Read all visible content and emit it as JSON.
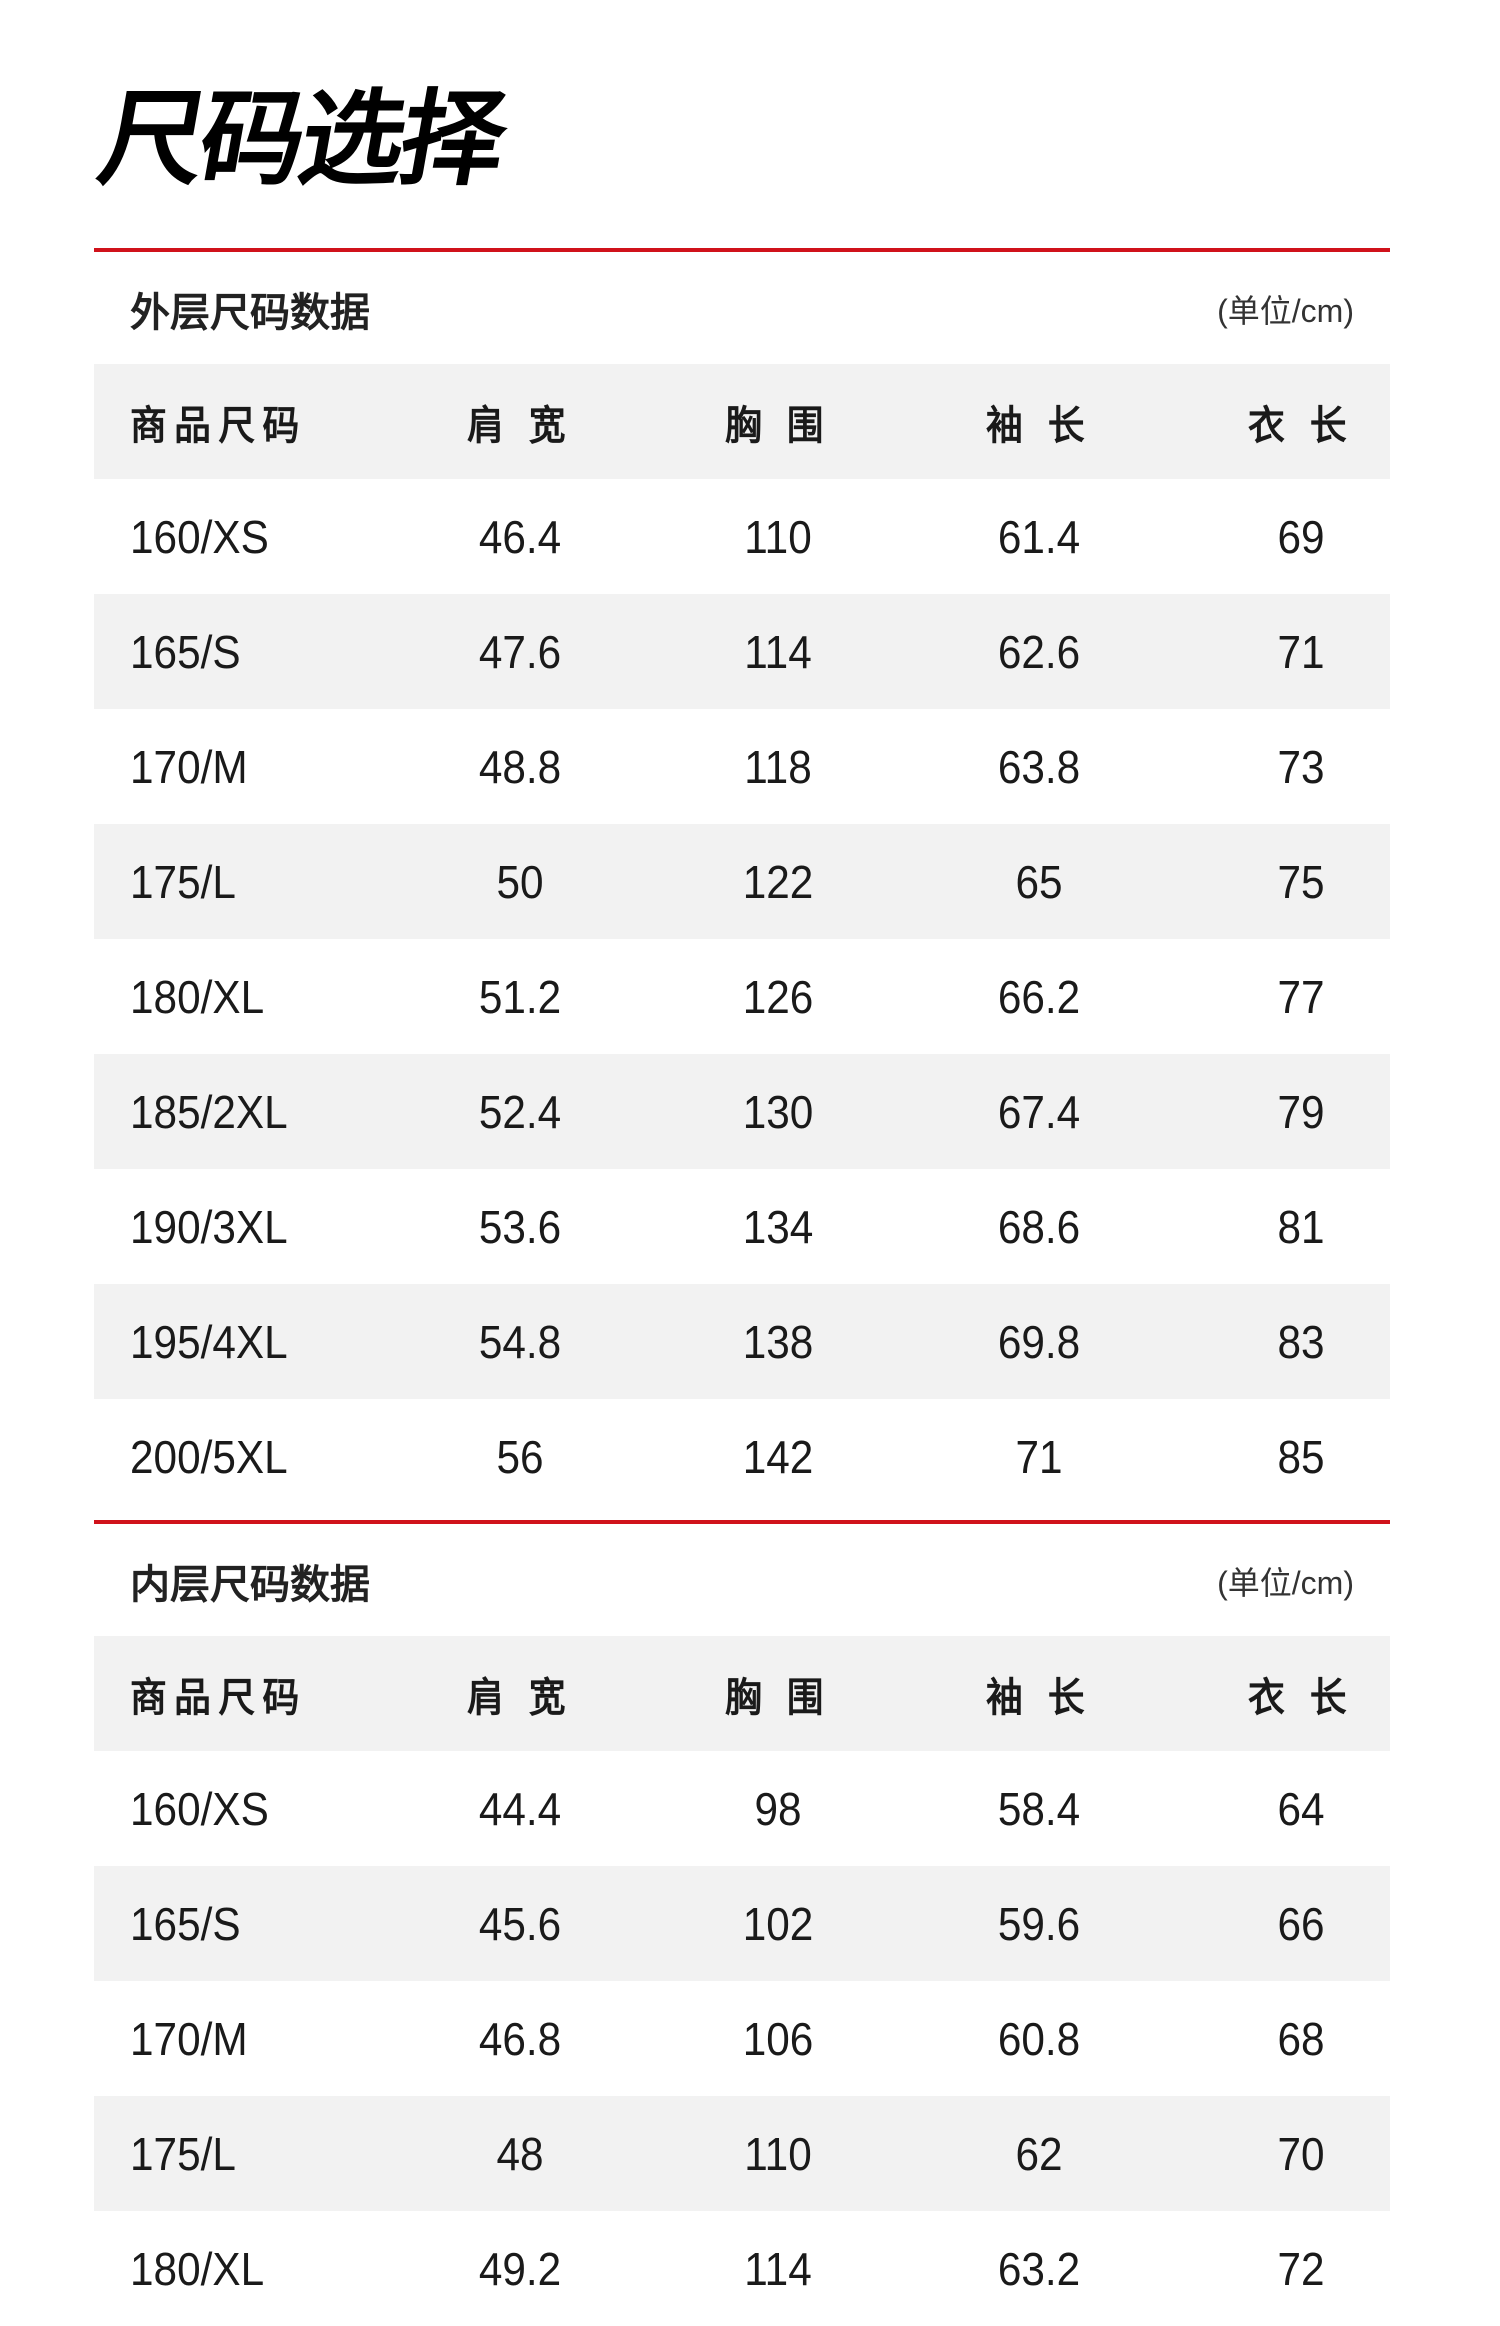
{
  "page_title": "尺码选择",
  "columns": [
    "商品尺码",
    "肩 宽",
    "胸 围",
    "袖 长",
    "衣 长"
  ],
  "colors": {
    "accent_line": "#d0121b",
    "stripe": "#f2f2f2"
  },
  "tables": [
    {
      "title": "外层尺码数据",
      "unit": "(单位/cm)",
      "rows": [
        [
          "160/XS",
          "46.4",
          "110",
          "61.4",
          "69"
        ],
        [
          "165/S",
          "47.6",
          "114",
          "62.6",
          "71"
        ],
        [
          "170/M",
          "48.8",
          "118",
          "63.8",
          "73"
        ],
        [
          "175/L",
          "50",
          "122",
          "65",
          "75"
        ],
        [
          "180/XL",
          "51.2",
          "126",
          "66.2",
          "77"
        ],
        [
          "185/2XL",
          "52.4",
          "130",
          "67.4",
          "79"
        ],
        [
          "190/3XL",
          "53.6",
          "134",
          "68.6",
          "81"
        ],
        [
          "195/4XL",
          "54.8",
          "138",
          "69.8",
          "83"
        ],
        [
          "200/5XL",
          "56",
          "142",
          "71",
          "85"
        ]
      ]
    },
    {
      "title": "内层尺码数据",
      "unit": "(单位/cm)",
      "rows": [
        [
          "160/XS",
          "44.4",
          "98",
          "58.4",
          "64"
        ],
        [
          "165/S",
          "45.6",
          "102",
          "59.6",
          "66"
        ],
        [
          "170/M",
          "46.8",
          "106",
          "60.8",
          "68"
        ],
        [
          "175/L",
          "48",
          "110",
          "62",
          "70"
        ],
        [
          "180/XL",
          "49.2",
          "114",
          "63.2",
          "72"
        ]
      ]
    }
  ]
}
